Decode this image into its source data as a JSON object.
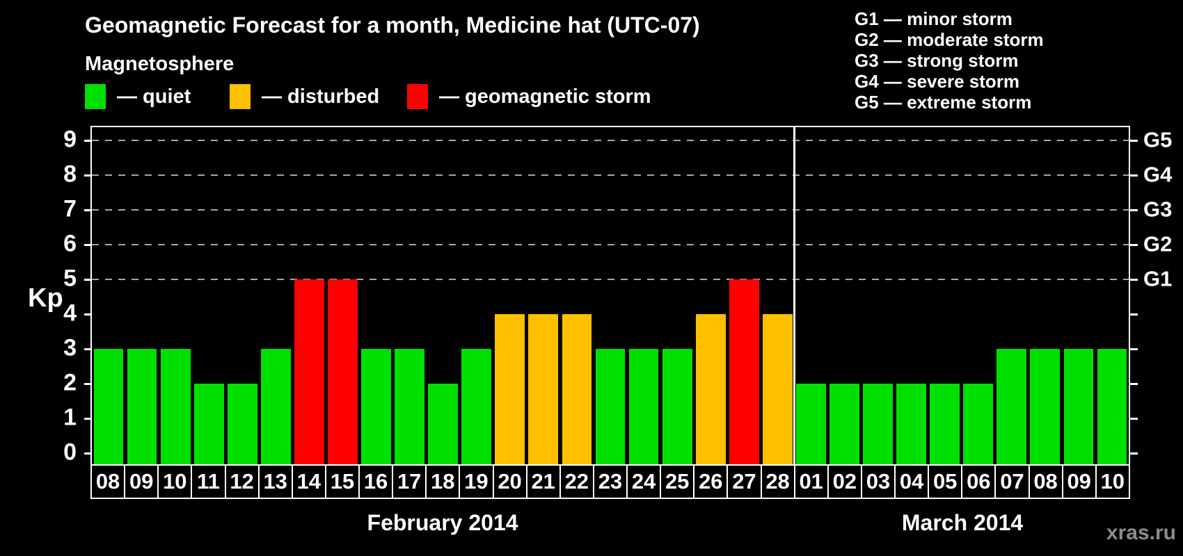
{
  "title": "Geomagnetic Forecast for a month, Medicine hat (UTC-07)",
  "watermark": "xras.ru",
  "legend": {
    "title": "Magnetosphere",
    "items": [
      {
        "key": "quiet",
        "label": "— quiet"
      },
      {
        "key": "disturbed",
        "label": "— disturbed"
      },
      {
        "key": "storm",
        "label": "— geomagnetic storm"
      }
    ]
  },
  "g_scale_legend": [
    "G1 — minor storm",
    "G2 — moderate storm",
    "G3 — strong storm",
    "G4 — severe storm",
    "G5 — extreme storm"
  ],
  "chart_data": {
    "type": "bar",
    "title": "Geomagnetic Forecast for a month, Medicine hat (UTC-07)",
    "ylabel": "Kp",
    "ylim": [
      0,
      9
    ],
    "y_ticks": [
      0,
      1,
      2,
      3,
      4,
      5,
      6,
      7,
      8,
      9
    ],
    "gridlines_at_kp": [
      5,
      6,
      7,
      8,
      9
    ],
    "grid_on": true,
    "grid_color": "#a6a6a6",
    "background_color": "#000000",
    "legend_position": "top-left",
    "right_axis": [
      {
        "kp": 5,
        "label": "G1"
      },
      {
        "kp": 6,
        "label": "G2"
      },
      {
        "kp": 7,
        "label": "G3"
      },
      {
        "kp": 8,
        "label": "G4"
      },
      {
        "kp": 9,
        "label": "G5"
      }
    ],
    "colors": {
      "quiet": "#00e000",
      "disturbed": "#ffc000",
      "storm": "#ff0000"
    },
    "months": [
      {
        "label": "February 2014",
        "short": "feb",
        "days": [
          "08",
          "09",
          "10",
          "11",
          "12",
          "13",
          "14",
          "15",
          "16",
          "17",
          "18",
          "19",
          "20",
          "21",
          "22",
          "23",
          "24",
          "25",
          "26",
          "27",
          "28"
        ],
        "values": [
          3,
          3,
          3,
          2,
          2,
          3,
          5,
          5,
          3,
          3,
          2,
          3,
          4,
          4,
          4,
          3,
          3,
          3,
          4,
          5,
          4
        ],
        "statuses": [
          "quiet",
          "quiet",
          "quiet",
          "quiet",
          "quiet",
          "quiet",
          "storm",
          "storm",
          "quiet",
          "quiet",
          "quiet",
          "quiet",
          "disturbed",
          "disturbed",
          "disturbed",
          "quiet",
          "quiet",
          "quiet",
          "disturbed",
          "storm",
          "disturbed"
        ]
      },
      {
        "label": "March 2014",
        "short": "mar",
        "days": [
          "01",
          "02",
          "03",
          "04",
          "05",
          "06",
          "07",
          "08",
          "09",
          "10"
        ],
        "values": [
          2,
          2,
          2,
          2,
          2,
          2,
          3,
          3,
          3,
          3
        ],
        "statuses": [
          "quiet",
          "quiet",
          "quiet",
          "quiet",
          "quiet",
          "quiet",
          "quiet",
          "quiet",
          "quiet",
          "quiet"
        ]
      }
    ]
  }
}
